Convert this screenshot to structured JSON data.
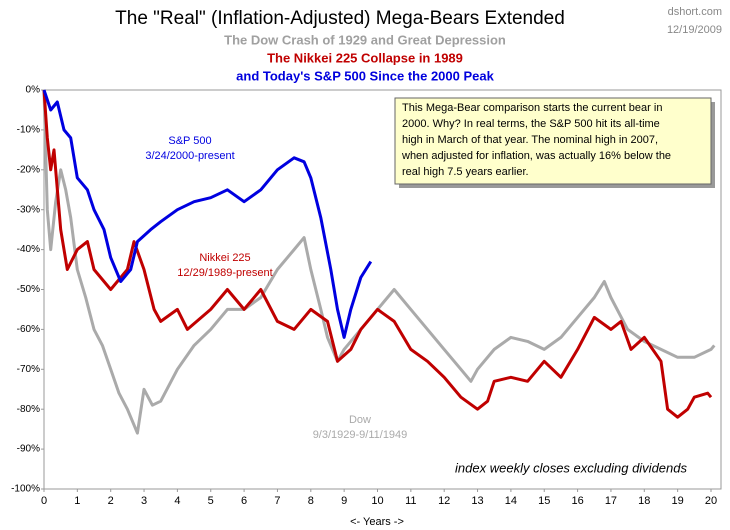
{
  "chart_data": {
    "type": "line",
    "title": "The \"Real\"  (Inflation-Adjusted)  Mega-Bears  Extended",
    "subtitles": [
      {
        "text": "The Dow Crash of 1929 and Great Depression",
        "color": "#a0a0a0"
      },
      {
        "text": "The Nikkei 225  Collapse in 1989",
        "color": "#c00000"
      },
      {
        "text": "and Today's S&P 500  Since the 2000  Peak",
        "color": "#0000dd"
      }
    ],
    "source": "dshort.com",
    "date": "12/19/2009",
    "note": "index weekly closes excluding dividends",
    "x_label": "<- Years ->",
    "text_box": [
      "This Mega-Bear comparison starts  the current bear in",
      "2000.  Why? In real terms, the S&P 500 hit its all-time",
      "high in March of that year. The nominal high in 2007,",
      "when adjusted for inflation, was actually 16% below the",
      "real high 7.5 years earlier."
    ],
    "xlim": [
      0,
      20.3
    ],
    "xticks": [
      0,
      1,
      2,
      3,
      4,
      5,
      6,
      7,
      8,
      9,
      10,
      11,
      12,
      13,
      14,
      15,
      16,
      17,
      18,
      19,
      20
    ],
    "ylim": [
      -100,
      0
    ],
    "yticks": [
      {
        "value": 0,
        "label": "0%"
      },
      {
        "value": -10,
        "label": "-10%"
      },
      {
        "value": -20,
        "label": "-20%"
      },
      {
        "value": -30,
        "label": "-30%"
      },
      {
        "value": -40,
        "label": "-40%"
      },
      {
        "value": -50,
        "label": "-50%"
      },
      {
        "value": -60,
        "label": "-60%"
      },
      {
        "value": -70,
        "label": "-70%"
      },
      {
        "value": -80,
        "label": "-80%"
      },
      {
        "value": -90,
        "label": "-90%"
      },
      {
        "value": -100,
        "label": "-100%"
      }
    ],
    "series": [
      {
        "name": "Dow",
        "period": "9/3/1929-9/11/1949",
        "color": "#aaaaaa",
        "x": [
          0,
          0.1,
          0.2,
          0.35,
          0.5,
          0.65,
          0.8,
          1,
          1.25,
          1.5,
          1.75,
          2,
          2.25,
          2.5,
          2.8,
          3,
          3.25,
          3.5,
          4,
          4.5,
          5,
          5.5,
          6,
          6.5,
          7,
          7.5,
          7.8,
          8,
          8.3,
          8.5,
          8.8,
          9,
          9.5,
          10,
          10.5,
          11,
          11.5,
          12,
          12.5,
          12.8,
          13,
          13.5,
          14,
          14.5,
          15,
          15.5,
          16,
          16.5,
          16.8,
          17,
          17.5,
          18,
          18.5,
          19,
          19.5,
          20,
          20.1
        ],
        "values": [
          0,
          -30,
          -40,
          -28,
          -20,
          -25,
          -32,
          -45,
          -52,
          -60,
          -64,
          -70,
          -76,
          -80,
          -86,
          -75,
          -79,
          -78,
          -70,
          -64,
          -60,
          -55,
          -55,
          -52,
          -45,
          -40,
          -37,
          -45,
          -55,
          -62,
          -68,
          -65,
          -60,
          -55,
          -50,
          -55,
          -60,
          -65,
          -70,
          -73,
          -70,
          -65,
          -62,
          -63,
          -65,
          -62,
          -57,
          -52,
          -48,
          -52,
          -60,
          -63,
          -65,
          -67,
          -67,
          -65,
          -64
        ]
      },
      {
        "name": "Nikkei 225",
        "period": "12/29/1989-present",
        "color": "#c00000",
        "x": [
          0,
          0.1,
          0.2,
          0.3,
          0.5,
          0.7,
          1,
          1.3,
          1.5,
          2,
          2.5,
          2.7,
          3,
          3.3,
          3.5,
          4,
          4.3,
          5,
          5.5,
          6,
          6.5,
          7,
          7.5,
          8,
          8.5,
          8.8,
          9.2,
          9.5,
          10,
          10.5,
          11,
          11.5,
          12,
          12.5,
          13,
          13.3,
          13.5,
          14,
          14.5,
          15,
          15.5,
          16,
          16.5,
          17,
          17.3,
          17.6,
          18,
          18.5,
          18.7,
          19,
          19.3,
          19.5,
          19.9,
          20
        ],
        "values": [
          0,
          -12,
          -20,
          -15,
          -35,
          -45,
          -40,
          -38,
          -45,
          -50,
          -45,
          -38,
          -45,
          -55,
          -58,
          -55,
          -60,
          -55,
          -50,
          -55,
          -50,
          -58,
          -60,
          -55,
          -58,
          -68,
          -65,
          -60,
          -55,
          -58,
          -65,
          -68,
          -72,
          -77,
          -80,
          -78,
          -73,
          -72,
          -73,
          -68,
          -72,
          -65,
          -57,
          -60,
          -58,
          -65,
          -62,
          -68,
          -80,
          -82,
          -80,
          -77,
          -76,
          -77
        ]
      },
      {
        "name": "S&P 500",
        "period": "3/24/2000-present",
        "color": "#0000e0",
        "x": [
          0,
          0.2,
          0.4,
          0.6,
          0.8,
          1,
          1.3,
          1.5,
          1.8,
          2,
          2.3,
          2.6,
          2.8,
          3.2,
          3.5,
          4,
          4.5,
          5,
          5.5,
          6,
          6.5,
          7,
          7.5,
          7.8,
          8,
          8.3,
          8.6,
          8.8,
          9,
          9.2,
          9.5,
          9.8
        ],
        "values": [
          0,
          -5,
          -3,
          -10,
          -12,
          -22,
          -25,
          -30,
          -35,
          -42,
          -48,
          -45,
          -38,
          -35,
          -33,
          -30,
          -28,
          -27,
          -25,
          -28,
          -25,
          -20,
          -17,
          -18,
          -22,
          -32,
          -45,
          -55,
          -62,
          -55,
          -47,
          -43
        ]
      }
    ]
  }
}
